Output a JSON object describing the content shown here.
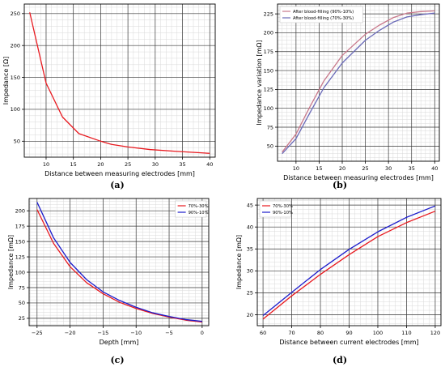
{
  "chart_data": [
    {
      "type": "line",
      "caption": "(a)",
      "xlabel": "Distance between measuring electrodes [mm]",
      "ylabel": "Impedance [Ω]",
      "xlim": [
        6,
        41
      ],
      "ylim": [
        25,
        265
      ],
      "xticks": [
        10,
        15,
        20,
        25,
        30,
        35,
        40
      ],
      "yticks": [
        50,
        100,
        150,
        200,
        250
      ],
      "grid": true,
      "legend": null,
      "series": [
        {
          "color": "#e8191f",
          "x": [
            7,
            10,
            13,
            16,
            20,
            22,
            25,
            29,
            34,
            40
          ],
          "y": [
            252,
            141,
            88,
            62,
            50,
            45,
            41,
            37,
            34,
            31
          ]
        }
      ]
    },
    {
      "type": "line",
      "caption": "(b)",
      "xlabel": "Distance between measuring electrodes [mm]",
      "ylabel": "Impedance variation [mΩ]",
      "xlim": [
        6,
        41
      ],
      "ylim": [
        30,
        238
      ],
      "xticks": [
        10,
        15,
        20,
        25,
        30,
        35,
        40
      ],
      "yticks": [
        50,
        75,
        100,
        125,
        150,
        175,
        200,
        225
      ],
      "grid": true,
      "legend": "top-left",
      "series": [
        {
          "name": "After blood-filling (90%-10%)",
          "color": "#c8778a",
          "x": [
            7,
            10,
            13,
            16,
            20,
            25,
            28,
            31,
            34,
            37,
            40
          ],
          "y": [
            42,
            66,
            102,
            136,
            170,
            198,
            210,
            220,
            226,
            228,
            229
          ]
        },
        {
          "name": "After blood-filling (70%-30%)",
          "color": "#6a6ab8",
          "x": [
            7,
            10,
            13,
            16,
            20,
            25,
            28,
            31,
            34,
            37,
            40
          ],
          "y": [
            40,
            60,
            94,
            127,
            160,
            190,
            203,
            214,
            221,
            224,
            226
          ]
        }
      ]
    },
    {
      "type": "line",
      "caption": "(c)",
      "xlabel": "Depth [mm]",
      "ylabel": "Impedance [mΩ]",
      "xlim": [
        -26.2,
        1
      ],
      "ylim": [
        13,
        220
      ],
      "xticks": [
        -25,
        -20,
        -15,
        -10,
        -5,
        0
      ],
      "yticks": [
        25,
        50,
        75,
        100,
        125,
        150,
        175,
        200
      ],
      "grid": true,
      "legend": "top-right",
      "series": [
        {
          "name": "70%-30%",
          "color": "#e8191f",
          "x": [
            -25,
            -22.5,
            -20,
            -17.5,
            -15,
            -12.5,
            -10,
            -7.5,
            -5,
            -2.5,
            0
          ],
          "y": [
            202,
            147,
            109,
            83,
            65,
            51,
            41,
            33,
            27,
            22,
            19
          ]
        },
        {
          "name": "90%-10%",
          "color": "#1c1ccc",
          "x": [
            -25,
            -22.5,
            -20,
            -17.5,
            -15,
            -12.5,
            -10,
            -7.5,
            -5,
            -2.5,
            0
          ],
          "y": [
            214,
            156,
            116,
            88,
            68,
            54,
            43,
            34,
            28,
            23,
            20
          ]
        }
      ]
    },
    {
      "type": "line",
      "caption": "(d)",
      "xlabel": "Distance between current electrodes [mm]",
      "ylabel": "Impedance [mΩ]",
      "xlim": [
        58,
        122
      ],
      "ylim": [
        17.5,
        46.5
      ],
      "xticks": [
        60,
        70,
        80,
        90,
        100,
        110,
        120
      ],
      "yticks": [
        20,
        25,
        30,
        35,
        40,
        45
      ],
      "grid": true,
      "legend": "top-left",
      "series": [
        {
          "name": "70%-30%",
          "color": "#e8191f",
          "x": [
            60,
            70,
            80,
            90,
            100,
            110,
            120
          ],
          "y": [
            19.0,
            24.3,
            29.2,
            33.7,
            37.8,
            41.0,
            43.6
          ]
        },
        {
          "name": "90%-10%",
          "color": "#1c1ccc",
          "x": [
            60,
            70,
            80,
            90,
            100,
            110,
            120
          ],
          "y": [
            19.8,
            25.1,
            30.3,
            34.9,
            38.9,
            42.2,
            44.8
          ]
        }
      ]
    }
  ]
}
